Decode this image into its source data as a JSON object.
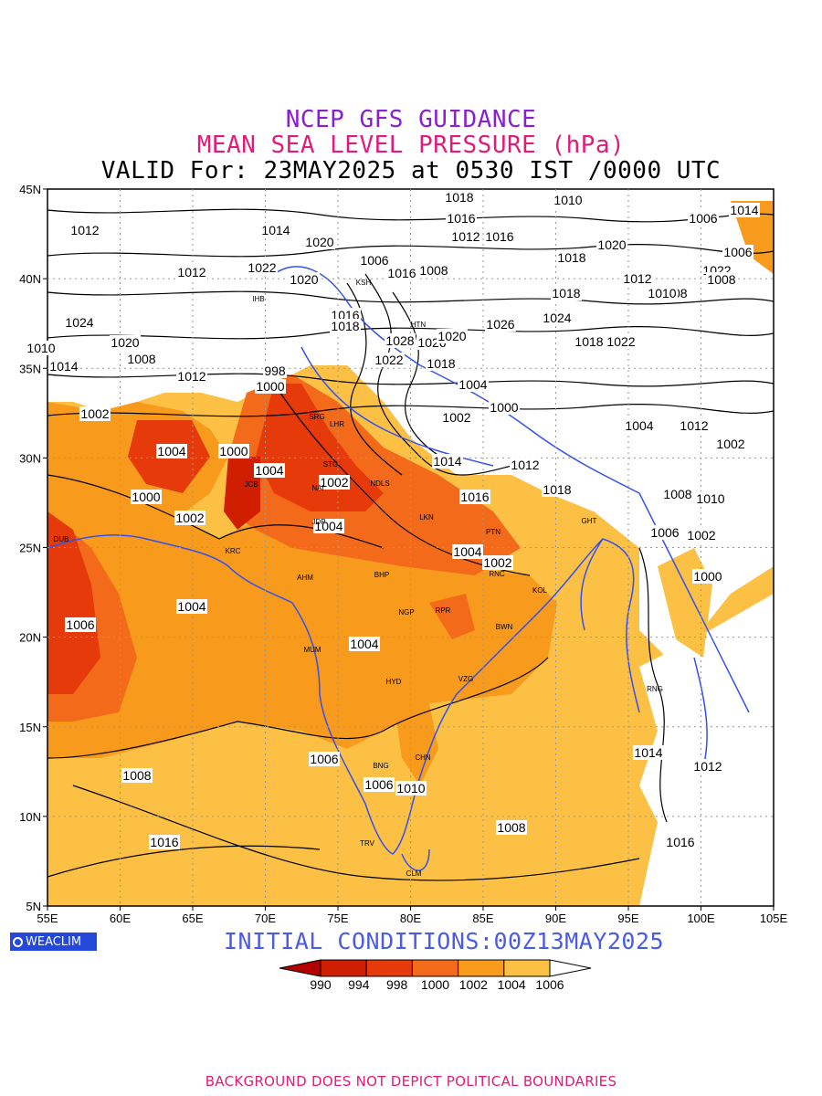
{
  "titles": {
    "line1": "NCEP GFS GUIDANCE",
    "line2": "MEAN SEA LEVEL PRESSURE (hPa)",
    "line3": "VALID For: 23MAY2025 at 0530 IST /0000 UTC"
  },
  "colors": {
    "line1": "#8a1fd0",
    "line2": "#e01c7a",
    "init": "#4a5be6",
    "footer": "#e01c7a",
    "logo_bg": "#2448d8",
    "coast": "#3350ee"
  },
  "map": {
    "lon_labels": [
      "55E",
      "60E",
      "65E",
      "70E",
      "75E",
      "80E",
      "85E",
      "90E",
      "95E",
      "100E",
      "105E"
    ],
    "lat_labels": [
      "45N",
      "40N",
      "35N",
      "30N",
      "25N",
      "20N",
      "15N",
      "10N",
      "5N"
    ],
    "city_labels": [
      "DUB",
      "KRC",
      "JCB",
      "JDP",
      "AHM",
      "BHP",
      "NGP",
      "RPR",
      "MUM",
      "HYD",
      "VZG",
      "BWN",
      "KOL",
      "RNC",
      "PTN",
      "LKN",
      "NDLS",
      "STG",
      "SRG",
      "LHR",
      "CHN",
      "BNG",
      "TRV",
      "CLM",
      "GHT",
      "RNG",
      "IHB",
      "KSH",
      "HTN",
      "NAI"
    ],
    "contour_labels": [
      "1018",
      "1016",
      "1012",
      "1014",
      "1012",
      "1020",
      "1016",
      "1010",
      "1018",
      "1006",
      "1008",
      "1006",
      "1012",
      "1022",
      "1020",
      "1016",
      "1014",
      "1020",
      "1012",
      "1008",
      "1022",
      "1018",
      "1024",
      "1026",
      "1018",
      "1022",
      "1024",
      "1020",
      "1010",
      "1014",
      "1008",
      "1012",
      "1016",
      "1018",
      "1028",
      "1026",
      "1020",
      "1022",
      "1018",
      "1004",
      "1000",
      "1002",
      "998",
      "1000",
      "1002",
      "1004",
      "1000",
      "1004",
      "1002",
      "1000",
      "1002",
      "1004",
      "1004",
      "1002",
      "1004",
      "1006",
      "1004",
      "1006",
      "1008",
      "1006",
      "1010",
      "1008",
      "1016",
      "1014",
      "1012",
      "1016",
      "1006",
      "1002",
      "1000",
      "1010",
      "1008",
      "1002",
      "1012",
      "1004",
      "1018",
      "1016",
      "1014",
      "1012",
      "1010",
      "1008",
      "1006"
    ]
  },
  "legend": {
    "labels": [
      "990",
      "994",
      "998",
      "1000",
      "1002",
      "1004",
      "1006"
    ],
    "colors": [
      "#b30000",
      "#cf1f00",
      "#e63a0a",
      "#f36a1a",
      "#f89a1c",
      "#fbc044"
    ]
  },
  "logo": {
    "text": "WEACLIM"
  },
  "initial_conditions": "INITIAL CONDITIONS:00Z13MAY2025",
  "footer": "BACKGROUND DOES NOT DEPICT POLITICAL BOUNDARIES"
}
